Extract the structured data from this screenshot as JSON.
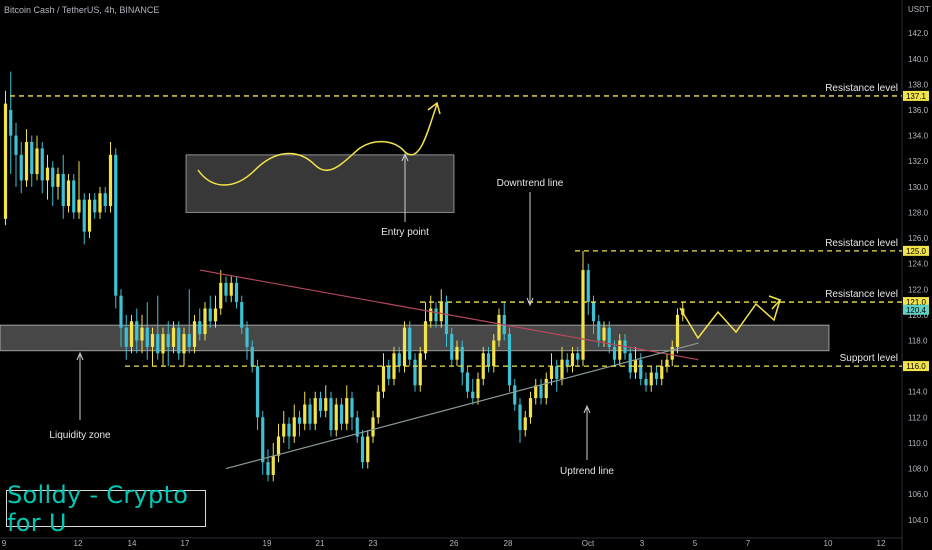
{
  "header": {
    "symbol_line": "Bitcoin Cash / TetherUS, 4h, BINANCE",
    "currency": "USDT"
  },
  "branding": {
    "watermark": "Solldy - Crypto for U"
  },
  "colors": {
    "background": "#000000",
    "up_candle": "#f2e34b",
    "down_candle": "#3ec1d3",
    "level_line": "#f2e34b",
    "downtrend": "#b5485c",
    "uptrend": "#8a9a96",
    "zone": "#ffffff"
  },
  "chart_data": {
    "type": "candlestick",
    "y_axis": {
      "ylim": [
        103.2,
        144.2
      ],
      "ticks": [
        104.0,
        106.0,
        108.0,
        110.0,
        112.0,
        114.0,
        116.0,
        118.0,
        120.0,
        122.0,
        124.0,
        126.0,
        128.0,
        130.0,
        132.0,
        134.0,
        136.0,
        138.0,
        140.0,
        142.0
      ]
    },
    "x_axis": {
      "ticks": [
        "9",
        "12",
        "14",
        "17",
        "19",
        "21",
        "23",
        "26",
        "28",
        "Oct",
        "3",
        "5",
        "7",
        "10",
        "12"
      ]
    },
    "candles": [
      {
        "o": 127.5,
        "c": 136.5,
        "h": 137.5,
        "l": 127.0
      },
      {
        "o": 136.0,
        "c": 134.0,
        "h": 139.0,
        "l": 131.0
      },
      {
        "o": 134.0,
        "c": 132.5,
        "h": 135.0,
        "l": 130.0
      },
      {
        "o": 132.5,
        "c": 130.5,
        "h": 133.5,
        "l": 129.5
      },
      {
        "o": 130.5,
        "c": 133.5,
        "h": 134.5,
        "l": 130.0
      },
      {
        "o": 133.5,
        "c": 131.0,
        "h": 134.0,
        "l": 130.0
      },
      {
        "o": 131.0,
        "c": 133.0,
        "h": 134.0,
        "l": 130.5
      },
      {
        "o": 133.0,
        "c": 130.5,
        "h": 133.5,
        "l": 129.5
      },
      {
        "o": 130.5,
        "c": 131.5,
        "h": 132.5,
        "l": 129.0
      },
      {
        "o": 131.5,
        "c": 130.0,
        "h": 132.0,
        "l": 128.5
      },
      {
        "o": 130.0,
        "c": 131.0,
        "h": 131.5,
        "l": 129.0
      },
      {
        "o": 131.0,
        "c": 128.5,
        "h": 132.5,
        "l": 127.5
      },
      {
        "o": 128.5,
        "c": 130.5,
        "h": 131.0,
        "l": 128.0
      },
      {
        "o": 130.5,
        "c": 128.0,
        "h": 131.0,
        "l": 127.5
      },
      {
        "o": 128.0,
        "c": 129.0,
        "h": 132.0,
        "l": 127.5
      },
      {
        "o": 129.0,
        "c": 126.5,
        "h": 129.5,
        "l": 125.5
      },
      {
        "o": 126.5,
        "c": 129.0,
        "h": 129.5,
        "l": 126.0
      },
      {
        "o": 129.0,
        "c": 128.0,
        "h": 129.5,
        "l": 127.5
      },
      {
        "o": 128.0,
        "c": 129.5,
        "h": 130.0,
        "l": 127.5
      },
      {
        "o": 129.5,
        "c": 128.5,
        "h": 130.0,
        "l": 128.0
      },
      {
        "o": 128.5,
        "c": 132.5,
        "h": 133.5,
        "l": 128.0
      },
      {
        "o": 132.5,
        "c": 121.5,
        "h": 133.0,
        "l": 120.5
      },
      {
        "o": 121.5,
        "c": 119.0,
        "h": 122.0,
        "l": 117.5
      },
      {
        "o": 119.0,
        "c": 117.5,
        "h": 120.0,
        "l": 116.5
      },
      {
        "o": 117.5,
        "c": 119.5,
        "h": 120.0,
        "l": 117.0
      },
      {
        "o": 119.5,
        "c": 118.0,
        "h": 120.5,
        "l": 117.0
      },
      {
        "o": 118.0,
        "c": 119.0,
        "h": 120.0,
        "l": 117.0
      },
      {
        "o": 119.0,
        "c": 117.5,
        "h": 121.0,
        "l": 116.5
      },
      {
        "o": 117.5,
        "c": 118.5,
        "h": 119.0,
        "l": 116.0
      },
      {
        "o": 118.5,
        "c": 117.0,
        "h": 121.5,
        "l": 116.5
      },
      {
        "o": 117.0,
        "c": 118.5,
        "h": 119.0,
        "l": 116.0
      },
      {
        "o": 118.5,
        "c": 117.5,
        "h": 119.5,
        "l": 116.0
      },
      {
        "o": 117.5,
        "c": 119.0,
        "h": 119.5,
        "l": 117.0
      },
      {
        "o": 119.0,
        "c": 117.0,
        "h": 119.5,
        "l": 116.5
      },
      {
        "o": 117.0,
        "c": 118.5,
        "h": 119.0,
        "l": 116.0
      },
      {
        "o": 118.5,
        "c": 117.5,
        "h": 122.0,
        "l": 117.0
      },
      {
        "o": 117.5,
        "c": 119.5,
        "h": 120.0,
        "l": 117.0
      },
      {
        "o": 119.5,
        "c": 118.5,
        "h": 120.5,
        "l": 118.0
      },
      {
        "o": 118.5,
        "c": 120.5,
        "h": 121.0,
        "l": 118.0
      },
      {
        "o": 120.5,
        "c": 119.5,
        "h": 121.5,
        "l": 119.0
      },
      {
        "o": 119.5,
        "c": 120.5,
        "h": 121.5,
        "l": 119.0
      },
      {
        "o": 120.5,
        "c": 122.5,
        "h": 123.5,
        "l": 120.0
      },
      {
        "o": 122.5,
        "c": 121.5,
        "h": 123.0,
        "l": 121.0
      },
      {
        "o": 121.5,
        "c": 122.5,
        "h": 123.0,
        "l": 121.0
      },
      {
        "o": 122.5,
        "c": 121.0,
        "h": 123.0,
        "l": 120.5
      },
      {
        "o": 121.0,
        "c": 119.0,
        "h": 121.5,
        "l": 118.5
      },
      {
        "o": 119.0,
        "c": 117.5,
        "h": 119.5,
        "l": 116.5
      },
      {
        "o": 117.5,
        "c": 116.0,
        "h": 118.0,
        "l": 115.5
      },
      {
        "o": 116.0,
        "c": 112.0,
        "h": 116.5,
        "l": 111.0
      },
      {
        "o": 112.0,
        "c": 108.5,
        "h": 112.5,
        "l": 107.5
      },
      {
        "o": 108.5,
        "c": 107.5,
        "h": 109.5,
        "l": 107.0
      },
      {
        "o": 107.5,
        "c": 109.0,
        "h": 110.0,
        "l": 107.0
      },
      {
        "o": 109.0,
        "c": 110.5,
        "h": 111.5,
        "l": 108.5
      },
      {
        "o": 110.5,
        "c": 111.5,
        "h": 112.5,
        "l": 110.0
      },
      {
        "o": 111.5,
        "c": 110.5,
        "h": 112.0,
        "l": 109.5
      },
      {
        "o": 110.5,
        "c": 112.0,
        "h": 113.0,
        "l": 110.0
      },
      {
        "o": 112.0,
        "c": 111.5,
        "h": 112.5,
        "l": 110.5
      },
      {
        "o": 111.5,
        "c": 113.0,
        "h": 114.0,
        "l": 111.0
      },
      {
        "o": 113.0,
        "c": 111.5,
        "h": 113.5,
        "l": 111.0
      },
      {
        "o": 111.5,
        "c": 113.5,
        "h": 114.0,
        "l": 111.0
      },
      {
        "o": 113.5,
        "c": 112.5,
        "h": 114.0,
        "l": 112.0
      },
      {
        "o": 112.5,
        "c": 113.5,
        "h": 114.5,
        "l": 112.0
      },
      {
        "o": 113.5,
        "c": 111.0,
        "h": 114.0,
        "l": 110.5
      },
      {
        "o": 111.0,
        "c": 113.0,
        "h": 113.5,
        "l": 110.5
      },
      {
        "o": 113.0,
        "c": 111.5,
        "h": 113.5,
        "l": 111.0
      },
      {
        "o": 111.5,
        "c": 113.5,
        "h": 114.5,
        "l": 111.0
      },
      {
        "o": 113.5,
        "c": 112.0,
        "h": 114.0,
        "l": 111.0
      },
      {
        "o": 112.0,
        "c": 110.5,
        "h": 112.5,
        "l": 110.0
      },
      {
        "o": 110.5,
        "c": 108.5,
        "h": 111.0,
        "l": 108.0
      },
      {
        "o": 108.5,
        "c": 110.5,
        "h": 111.0,
        "l": 108.0
      },
      {
        "o": 110.5,
        "c": 112.0,
        "h": 112.5,
        "l": 110.0
      },
      {
        "o": 112.0,
        "c": 114.0,
        "h": 114.5,
        "l": 111.5
      },
      {
        "o": 114.0,
        "c": 116.0,
        "h": 117.0,
        "l": 113.5
      },
      {
        "o": 116.0,
        "c": 115.0,
        "h": 116.5,
        "l": 114.5
      },
      {
        "o": 115.0,
        "c": 117.0,
        "h": 117.5,
        "l": 114.5
      },
      {
        "o": 117.0,
        "c": 116.0,
        "h": 117.5,
        "l": 115.5
      },
      {
        "o": 116.0,
        "c": 119.0,
        "h": 119.5,
        "l": 115.5
      },
      {
        "o": 119.0,
        "c": 116.5,
        "h": 119.5,
        "l": 116.0
      },
      {
        "o": 116.5,
        "c": 114.5,
        "h": 117.0,
        "l": 114.0
      },
      {
        "o": 114.5,
        "c": 117.0,
        "h": 117.5,
        "l": 114.0
      },
      {
        "o": 117.0,
        "c": 119.5,
        "h": 121.0,
        "l": 116.5
      },
      {
        "o": 119.5,
        "c": 120.5,
        "h": 121.5,
        "l": 119.0
      },
      {
        "o": 120.5,
        "c": 119.5,
        "h": 121.0,
        "l": 119.0
      },
      {
        "o": 119.5,
        "c": 121.0,
        "h": 122.0,
        "l": 119.0
      },
      {
        "o": 121.0,
        "c": 118.5,
        "h": 121.5,
        "l": 117.5
      },
      {
        "o": 118.5,
        "c": 116.5,
        "h": 119.0,
        "l": 116.0
      },
      {
        "o": 116.5,
        "c": 117.5,
        "h": 118.0,
        "l": 116.0
      },
      {
        "o": 117.5,
        "c": 115.5,
        "h": 118.0,
        "l": 114.5
      },
      {
        "o": 115.5,
        "c": 114.0,
        "h": 116.0,
        "l": 113.5
      },
      {
        "o": 114.0,
        "c": 113.5,
        "h": 115.0,
        "l": 113.0
      },
      {
        "o": 113.5,
        "c": 115.0,
        "h": 115.5,
        "l": 113.0
      },
      {
        "o": 115.0,
        "c": 117.0,
        "h": 117.5,
        "l": 114.5
      },
      {
        "o": 117.0,
        "c": 116.0,
        "h": 117.5,
        "l": 115.5
      },
      {
        "o": 116.0,
        "c": 118.0,
        "h": 118.5,
        "l": 115.5
      },
      {
        "o": 118.0,
        "c": 120.0,
        "h": 120.5,
        "l": 117.5
      },
      {
        "o": 120.0,
        "c": 118.5,
        "h": 121.0,
        "l": 118.0
      },
      {
        "o": 118.5,
        "c": 114.5,
        "h": 119.0,
        "l": 114.0
      },
      {
        "o": 114.5,
        "c": 113.0,
        "h": 115.0,
        "l": 112.5
      },
      {
        "o": 113.0,
        "c": 111.0,
        "h": 113.5,
        "l": 110.0
      },
      {
        "o": 111.0,
        "c": 112.0,
        "h": 112.5,
        "l": 110.5
      },
      {
        "o": 112.0,
        "c": 113.5,
        "h": 114.0,
        "l": 111.5
      },
      {
        "o": 113.5,
        "c": 114.5,
        "h": 115.0,
        "l": 113.0
      },
      {
        "o": 114.5,
        "c": 113.5,
        "h": 115.0,
        "l": 113.0
      },
      {
        "o": 113.5,
        "c": 115.0,
        "h": 115.5,
        "l": 113.0
      },
      {
        "o": 115.0,
        "c": 116.0,
        "h": 117.0,
        "l": 114.5
      },
      {
        "o": 116.0,
        "c": 115.0,
        "h": 116.5,
        "l": 114.0
      },
      {
        "o": 115.0,
        "c": 116.5,
        "h": 117.5,
        "l": 114.5
      },
      {
        "o": 116.5,
        "c": 116.0,
        "h": 117.0,
        "l": 115.5
      },
      {
        "o": 116.0,
        "c": 117.0,
        "h": 117.5,
        "l": 115.5
      },
      {
        "o": 117.0,
        "c": 116.5,
        "h": 117.5,
        "l": 116.0
      },
      {
        "o": 116.5,
        "c": 123.5,
        "h": 125.0,
        "l": 116.0
      },
      {
        "o": 123.5,
        "c": 121.0,
        "h": 124.0,
        "l": 120.0
      },
      {
        "o": 121.0,
        "c": 119.5,
        "h": 121.5,
        "l": 118.5
      },
      {
        "o": 119.5,
        "c": 118.0,
        "h": 120.0,
        "l": 117.5
      },
      {
        "o": 118.0,
        "c": 119.0,
        "h": 119.5,
        "l": 117.5
      },
      {
        "o": 119.0,
        "c": 117.5,
        "h": 119.5,
        "l": 117.0
      },
      {
        "o": 117.5,
        "c": 116.5,
        "h": 118.0,
        "l": 116.0
      },
      {
        "o": 116.5,
        "c": 118.0,
        "h": 118.5,
        "l": 116.0
      },
      {
        "o": 118.0,
        "c": 117.0,
        "h": 118.5,
        "l": 116.5
      },
      {
        "o": 117.0,
        "c": 115.5,
        "h": 117.5,
        "l": 115.0
      },
      {
        "o": 115.5,
        "c": 116.5,
        "h": 117.5,
        "l": 115.0
      },
      {
        "o": 116.5,
        "c": 115.0,
        "h": 117.0,
        "l": 114.5
      },
      {
        "o": 115.0,
        "c": 114.5,
        "h": 115.5,
        "l": 114.0
      },
      {
        "o": 114.5,
        "c": 115.5,
        "h": 116.0,
        "l": 114.0
      },
      {
        "o": 115.5,
        "c": 115.0,
        "h": 116.0,
        "l": 114.5
      },
      {
        "o": 115.0,
        "c": 116.0,
        "h": 116.5,
        "l": 114.5
      },
      {
        "o": 116.0,
        "c": 116.5,
        "h": 117.0,
        "l": 115.5
      },
      {
        "o": 116.5,
        "c": 117.5,
        "h": 118.0,
        "l": 116.0
      },
      {
        "o": 117.5,
        "c": 120.0,
        "h": 120.5,
        "l": 117.0
      },
      {
        "o": 120.0,
        "c": 120.5,
        "h": 121.0,
        "l": 119.5
      }
    ],
    "levels": [
      {
        "label": "Resistance level",
        "price": 137.1,
        "tag": "137.1"
      },
      {
        "label": "Resistance level",
        "price": 125.0,
        "tag": "125.0"
      },
      {
        "label": "Resistance level",
        "price": 121.0,
        "tag": "121.0"
      },
      {
        "label": "Support level",
        "price": 116.0,
        "tag": "116.0"
      }
    ],
    "current_price": {
      "tag": "120.4",
      "price": 120.4
    },
    "annotations": {
      "liquidity_zone": "Liquidity zone",
      "entry_point": "Entry point",
      "downtrend_line": "Downtrend line",
      "uptrend_line": "Uptrend line"
    },
    "zones": {
      "liquidity": {
        "top": 119.2,
        "bottom": 117.2
      },
      "entry_box": {
        "top": 132.5,
        "bottom": 128.0
      }
    },
    "trendlines": {
      "downtrend": {
        "from": {
          "candle": 37,
          "price": 123.5
        },
        "to": {
          "candle": 132,
          "price": 116.5
        }
      },
      "uptrend": {
        "from": {
          "candle": 42,
          "price": 108.0
        },
        "to": {
          "candle": 132,
          "price": 117.8
        }
      }
    }
  }
}
